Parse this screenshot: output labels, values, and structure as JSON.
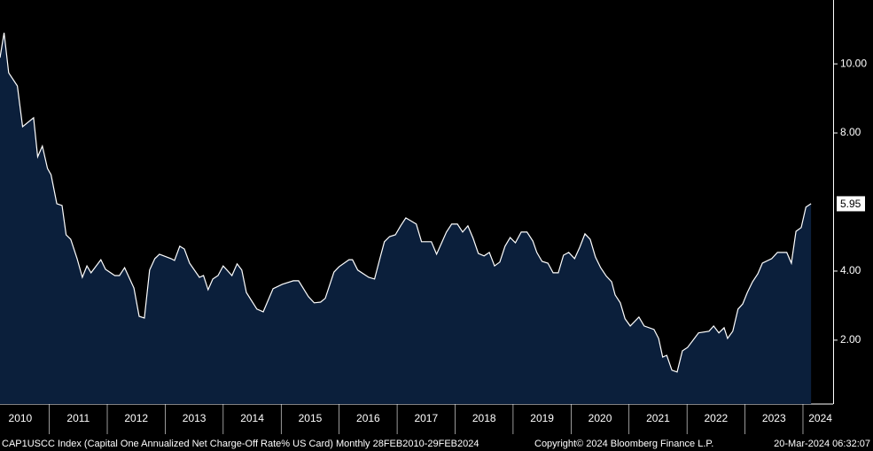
{
  "chart_data": {
    "type": "area",
    "line_color": "#ffffff",
    "fill_color": "#0b1f3b",
    "footer_left": "CAP1USCC Index (Capital One Annualized Net Charge-Off Rate% US Card)  Monthly 28FEB2010-29FEB2024",
    "footer_mid": "Copyright© 2024 Bloomberg Finance L.P.",
    "footer_right": "20-Mar-2024 06:32:07",
    "last_value": 5.95,
    "xlim": [
      2010.15,
      2024.52
    ],
    "ylim": [
      0.15,
      11.85
    ],
    "yticks": [
      {
        "value": 2,
        "label": "2.00"
      },
      {
        "value": 4,
        "label": "4.00"
      },
      {
        "value": 8,
        "label": "8.00"
      },
      {
        "value": 10,
        "label": "10.00"
      }
    ],
    "xticks": [
      {
        "value": 2010.5,
        "label": "2010"
      },
      {
        "value": 2011.5,
        "label": "2011"
      },
      {
        "value": 2012.5,
        "label": "2012"
      },
      {
        "value": 2013.5,
        "label": "2013"
      },
      {
        "value": 2014.5,
        "label": "2014"
      },
      {
        "value": 2015.5,
        "label": "2015"
      },
      {
        "value": 2016.5,
        "label": "2016"
      },
      {
        "value": 2017.5,
        "label": "2017"
      },
      {
        "value": 2018.5,
        "label": "2018"
      },
      {
        "value": 2019.5,
        "label": "2019"
      },
      {
        "value": 2020.5,
        "label": "2020"
      },
      {
        "value": 2021.5,
        "label": "2021"
      },
      {
        "value": 2022.5,
        "label": "2022"
      },
      {
        "value": 2023.5,
        "label": "2023"
      },
      {
        "value": 2024.3,
        "label": "2024"
      }
    ],
    "x": [
      2010.15,
      2010.22,
      2010.3,
      2010.45,
      2010.54,
      2010.73,
      2010.8,
      2010.88,
      2010.97,
      2011.03,
      2011.13,
      2011.22,
      2011.29,
      2011.37,
      2011.48,
      2011.57,
      2011.65,
      2011.72,
      2011.89,
      2011.97,
      2012.13,
      2012.21,
      2012.3,
      2012.46,
      2012.55,
      2012.64,
      2012.73,
      2012.82,
      2012.9,
      2013.1,
      2013.16,
      2013.25,
      2013.33,
      2013.42,
      2013.59,
      2013.66,
      2013.74,
      2013.82,
      2013.91,
      2014.0,
      2014.15,
      2014.24,
      2014.32,
      2014.4,
      2014.58,
      2014.69,
      2014.86,
      2015.02,
      2015.21,
      2015.3,
      2015.47,
      2015.57,
      2015.68,
      2015.76,
      2015.91,
      2016.0,
      2016.17,
      2016.23,
      2016.32,
      2016.51,
      2016.61,
      2016.71,
      2016.78,
      2016.87,
      2016.97,
      2017.06,
      2017.15,
      2017.33,
      2017.42,
      2017.59,
      2017.68,
      2017.85,
      2017.94,
      2018.04,
      2018.13,
      2018.22,
      2018.31,
      2018.4,
      2018.5,
      2018.59,
      2018.68,
      2018.77,
      2018.86,
      2018.95,
      2019.04,
      2019.14,
      2019.24,
      2019.34,
      2019.41,
      2019.5,
      2019.6,
      2019.69,
      2019.78,
      2019.87,
      2019.96,
      2020.06,
      2020.15,
      2020.24,
      2020.33,
      2020.42,
      2020.51,
      2020.61,
      2020.7,
      2020.76,
      2020.85,
      2020.93,
      2021.02,
      2021.17,
      2021.26,
      2021.43,
      2021.51,
      2021.58,
      2021.65,
      2021.74,
      2021.83,
      2021.92,
      2022.01,
      2022.2,
      2022.38,
      2022.46,
      2022.55,
      2022.64,
      2022.7,
      2022.79,
      2022.88,
      2022.96,
      2023.04,
      2023.13,
      2023.22,
      2023.3,
      2023.46,
      2023.56,
      2023.72,
      2023.8,
      2023.88,
      2023.97,
      2024.05,
      2024.14
    ],
    "values": [
      10.18,
      10.9,
      9.74,
      9.36,
      8.18,
      8.44,
      7.31,
      7.62,
      6.97,
      6.79,
      5.95,
      5.9,
      5.05,
      4.92,
      4.36,
      3.82,
      4.15,
      3.95,
      4.33,
      4.05,
      3.87,
      3.87,
      4.1,
      3.51,
      2.69,
      2.64,
      4.03,
      4.36,
      4.49,
      4.36,
      4.31,
      4.72,
      4.64,
      4.23,
      3.82,
      3.87,
      3.46,
      3.77,
      3.87,
      4.15,
      3.87,
      4.21,
      4.03,
      3.38,
      2.9,
      2.82,
      3.49,
      3.62,
      3.72,
      3.72,
      3.26,
      3.08,
      3.1,
      3.21,
      3.97,
      4.13,
      4.33,
      4.33,
      4.03,
      3.82,
      3.77,
      4.41,
      4.85,
      5.0,
      5.05,
      5.31,
      5.54,
      5.36,
      4.85,
      4.85,
      4.49,
      5.13,
      5.36,
      5.36,
      5.13,
      5.31,
      4.95,
      4.51,
      4.44,
      4.54,
      4.15,
      4.26,
      4.72,
      4.97,
      4.82,
      5.13,
      5.13,
      4.87,
      4.54,
      4.28,
      4.23,
      3.95,
      3.95,
      4.46,
      4.54,
      4.36,
      4.69,
      5.08,
      4.92,
      4.41,
      4.1,
      3.85,
      3.69,
      3.31,
      3.08,
      2.62,
      2.41,
      2.67,
      2.41,
      2.31,
      2.05,
      1.51,
      1.56,
      1.13,
      1.08,
      1.69,
      1.79,
      2.21,
      2.26,
      2.41,
      2.21,
      2.36,
      2.05,
      2.26,
      2.9,
      3.05,
      3.38,
      3.69,
      3.92,
      4.23,
      4.36,
      4.54,
      4.54,
      4.23,
      5.15,
      5.26,
      5.85,
      5.95
    ]
  }
}
